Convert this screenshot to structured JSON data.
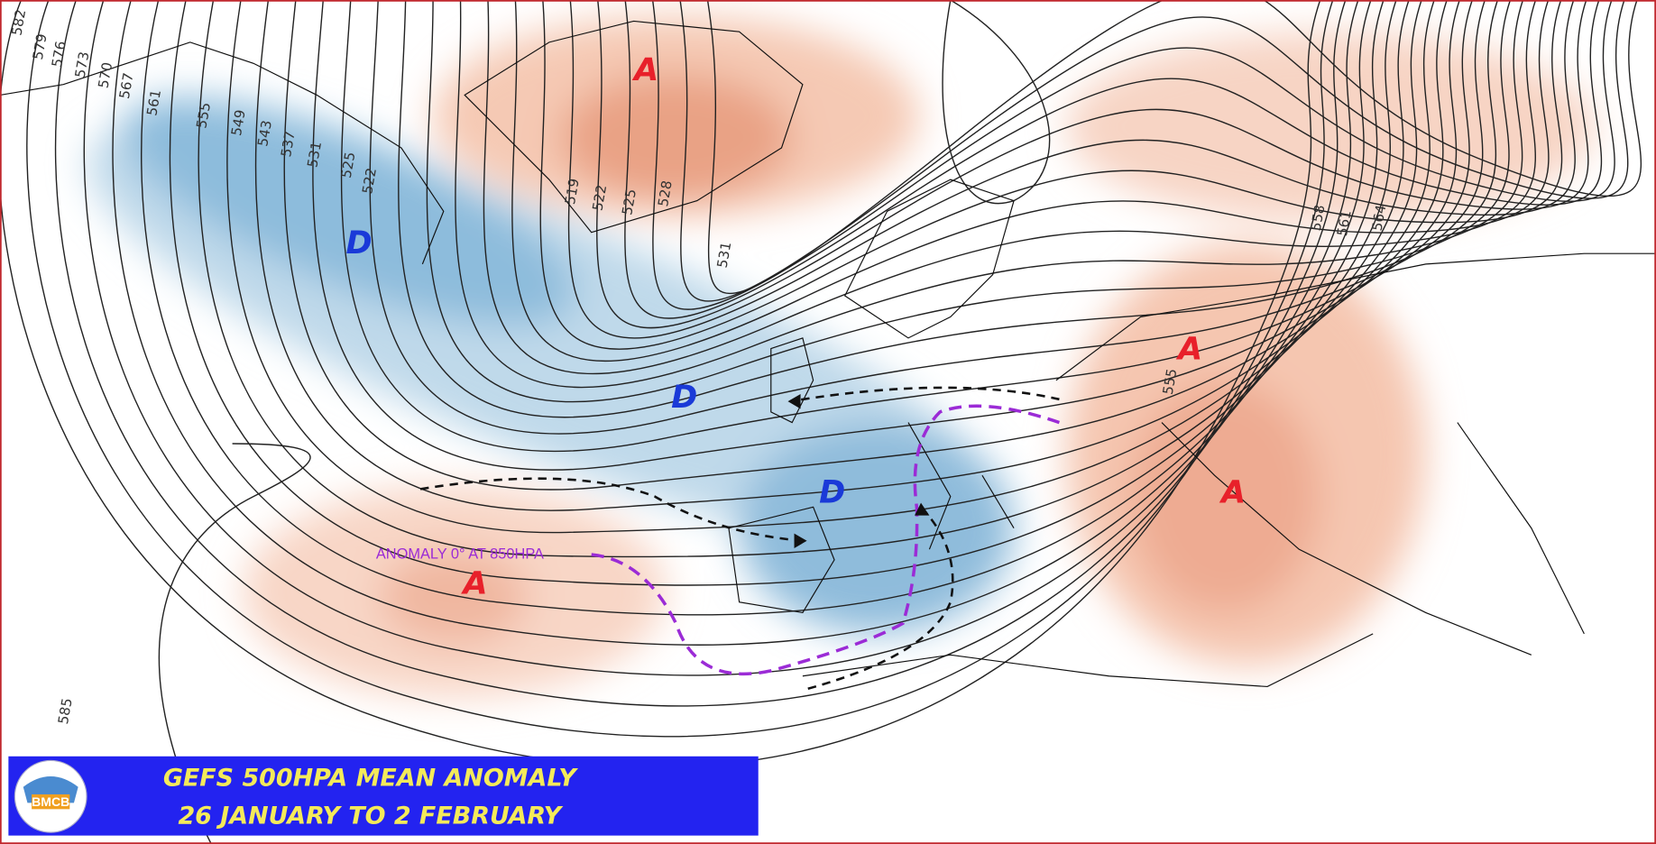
{
  "title": {
    "line1": "GEFS   500HPA MEAN ANOMALY",
    "line2": "26 JANUARY TO 2 FEBRUARY"
  },
  "logo": "BMCB",
  "annotation": "ANOMALY 0° AT 850HPA",
  "pressure_centers": [
    {
      "label": "A"
    },
    {
      "label": "D"
    },
    {
      "label": "D"
    },
    {
      "label": "D"
    },
    {
      "label": "A"
    },
    {
      "label": "A"
    },
    {
      "label": "A"
    }
  ],
  "contour_labels": [
    "582",
    "579",
    "576",
    "573",
    "570",
    "567",
    "561",
    "555",
    "549",
    "543",
    "537",
    "531",
    "525",
    "522",
    "519",
    "522",
    "525",
    "528",
    "531",
    "555",
    "558",
    "561",
    "564",
    "585"
  ]
}
